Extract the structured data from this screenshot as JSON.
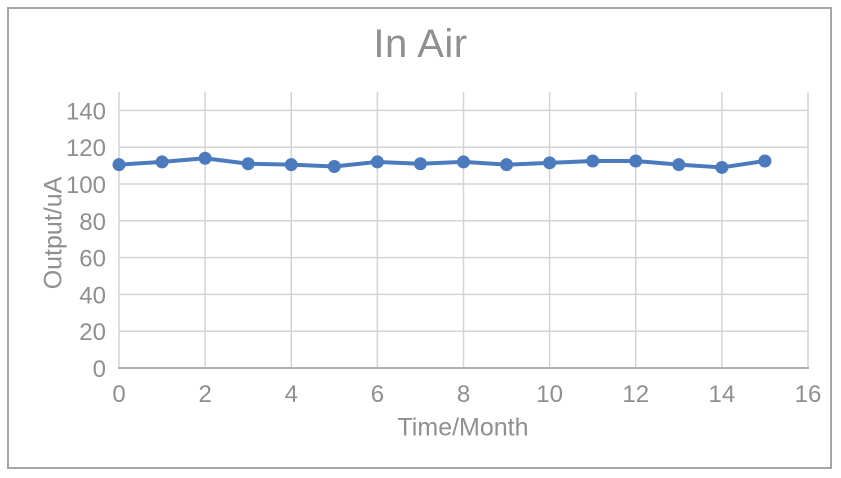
{
  "window": {
    "background": "#ffffff",
    "frame_border_color": "#a6a6a6"
  },
  "chart_data": {
    "type": "line",
    "title": "In Air",
    "xlabel": "Time/Month",
    "ylabel": "Output/uA",
    "x": [
      0,
      1,
      2,
      3,
      4,
      5,
      6,
      7,
      8,
      9,
      10,
      11,
      12,
      13,
      14,
      15
    ],
    "values": [
      110.5,
      112,
      114,
      111,
      110.5,
      109.5,
      112,
      111,
      112,
      110.5,
      111.5,
      112.5,
      112.5,
      110.5,
      109,
      112.5
    ],
    "xlim": [
      0,
      16
    ],
    "ylim": [
      0,
      150
    ],
    "x_ticks": [
      0,
      2,
      4,
      6,
      8,
      10,
      12,
      14,
      16
    ],
    "y_ticks": [
      0,
      20,
      40,
      60,
      80,
      100,
      120,
      140
    ],
    "grid": true,
    "legend": false,
    "markers": true,
    "colors": {
      "line": "#4b7bbd",
      "marker": "#4b7bbd",
      "grid": "#d4d4d4",
      "axis": "#b0b0b0",
      "text": "#8f8f8f"
    }
  }
}
